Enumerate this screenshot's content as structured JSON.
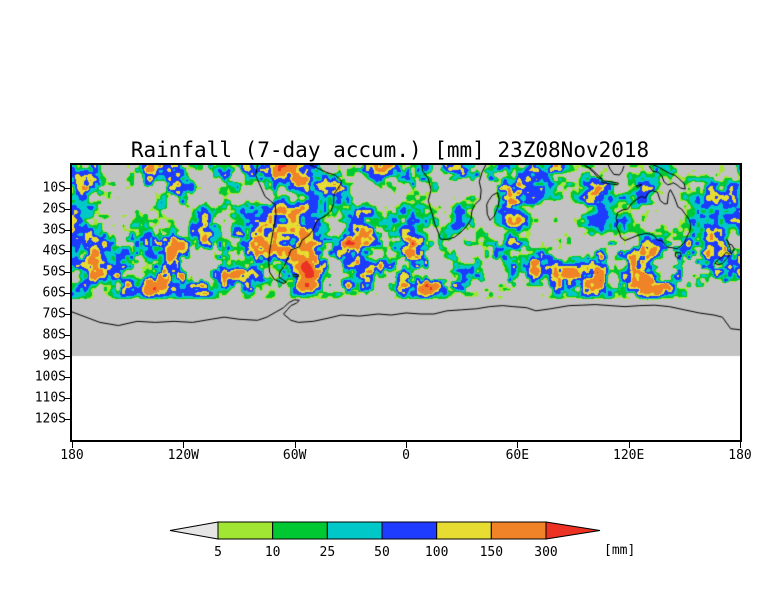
{
  "chart_data": {
    "type": "heatmap",
    "title": "Rainfall (7-day accum.) [mm] 23Z08Nov2018",
    "variable": "Rainfall (7-day accum.)",
    "valid_time": "23Z08Nov2018",
    "x_axis": {
      "tick_labels": [
        "180",
        "120W",
        "60W",
        "0",
        "60E",
        "120E",
        "180"
      ]
    },
    "y_axis": {
      "tick_labels": [
        "10S",
        "20S",
        "30S",
        "40S",
        "50S",
        "60S",
        "70S",
        "80S",
        "90S",
        "100S",
        "110S",
        "120S"
      ]
    },
    "colorbar": {
      "levels": [
        5,
        10,
        25,
        50,
        100,
        150,
        300
      ],
      "level_labels": [
        "5",
        "10",
        "25",
        "50",
        "100",
        "150",
        "300"
      ],
      "units_label": "[mm]",
      "below_min_color": "#e6e6e6",
      "segment_colors": [
        "#a0e632",
        "#00c832",
        "#00c8c8",
        "#1e3cff",
        "#e6dc32",
        "#f08228"
      ],
      "above_max_color": "#eb3223"
    },
    "map": {
      "background_color": "#c3c3c3",
      "no_data_color": "#ffffff",
      "coastline_color": "#000000"
    }
  }
}
